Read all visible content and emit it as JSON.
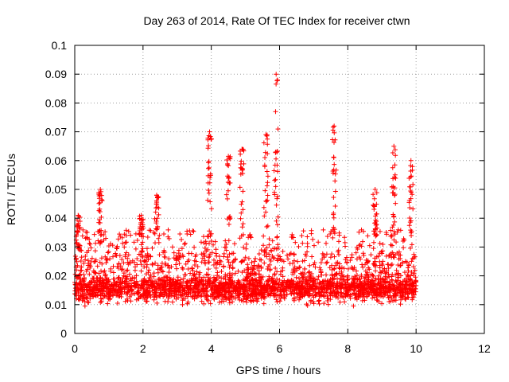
{
  "chart_data": {
    "type": "scatter",
    "title": "Day 263 of 2014, Rate Of TEC Index for receiver ctwn",
    "xlabel": "GPS time / hours",
    "ylabel": "ROTI / TECUs",
    "xlim": [
      0,
      12
    ],
    "ylim": [
      0,
      0.1
    ],
    "xticks": [
      0,
      2,
      4,
      6,
      8,
      10,
      12
    ],
    "yticks": [
      0,
      0.01,
      0.02,
      0.03,
      0.04,
      0.05,
      0.06,
      0.07,
      0.08,
      0.09,
      0.1
    ],
    "xtick_labels": [
      "0",
      "2",
      "4",
      "6",
      "8",
      "10",
      "12"
    ],
    "ytick_labels": [
      "0",
      "0.01",
      "0.02",
      "0.03",
      "0.04",
      "0.05",
      "0.06",
      "0.07",
      "0.08",
      "0.09",
      "0.1"
    ],
    "grid": true,
    "marker": "+",
    "color": "#ff0000",
    "data_range_hours": [
      0,
      10
    ],
    "baseline_band": [
      0.005,
      0.028
    ],
    "notable_peaks": [
      {
        "x": 0.1,
        "y": 0.041
      },
      {
        "x": 0.75,
        "y": 0.05
      },
      {
        "x": 1.95,
        "y": 0.041
      },
      {
        "x": 2.4,
        "y": 0.048
      },
      {
        "x": 3.95,
        "y": 0.07
      },
      {
        "x": 4.5,
        "y": 0.0615
      },
      {
        "x": 4.9,
        "y": 0.064
      },
      {
        "x": 5.6,
        "y": 0.069
      },
      {
        "x": 5.9,
        "y": 0.09
      },
      {
        "x": 7.6,
        "y": 0.072
      },
      {
        "x": 8.8,
        "y": 0.05
      },
      {
        "x": 9.35,
        "y": 0.065
      },
      {
        "x": 9.85,
        "y": 0.06
      }
    ]
  }
}
